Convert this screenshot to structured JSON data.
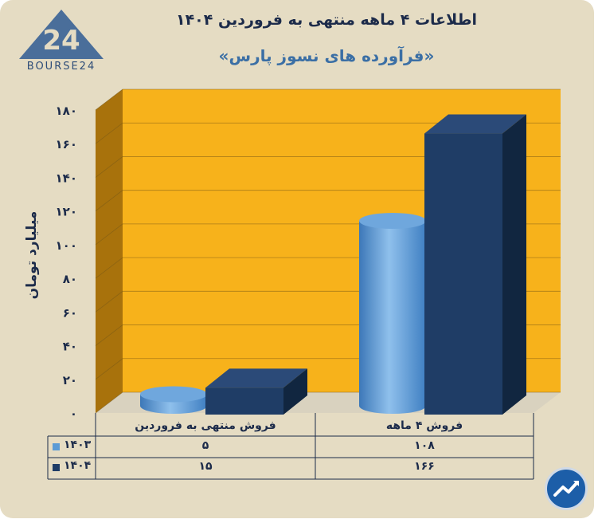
{
  "header": {
    "title": "اطلاعات ۴ ماهه منتهی به فروردین ۱۴۰۴",
    "subtitle": "«فرآورده های نسوز پارس»"
  },
  "logo": {
    "text": "BOURSE24",
    "mark": "24"
  },
  "chart_data": {
    "type": "bar",
    "ylabel": "میلیارد تومان",
    "ylim": [
      0,
      180
    ],
    "yticks": [
      "۰",
      "۲۰",
      "۴۰",
      "۶۰",
      "۸۰",
      "۱۰۰",
      "۱۲۰",
      "۱۴۰",
      "۱۶۰",
      "۱۸۰"
    ],
    "categories": [
      "فروش منتهی به  فروردین",
      "فروش ۴  ماهه"
    ],
    "series": [
      {
        "name": "۱۴۰۳",
        "values": [
          5,
          108
        ],
        "value_labels": [
          "۵",
          "۱۰۸"
        ],
        "color": "#5b9bd5",
        "shape": "cylinder"
      },
      {
        "name": "۱۴۰۴",
        "values": [
          15,
          166
        ],
        "value_labels": [
          "۱۵",
          "۱۶۶"
        ],
        "color": "#1f3d66",
        "shape": "box"
      }
    ],
    "grid": true,
    "background_color": "#f7b21b",
    "legend": "data-table-left"
  },
  "badge": {
    "icon": "trend-up-icon"
  }
}
